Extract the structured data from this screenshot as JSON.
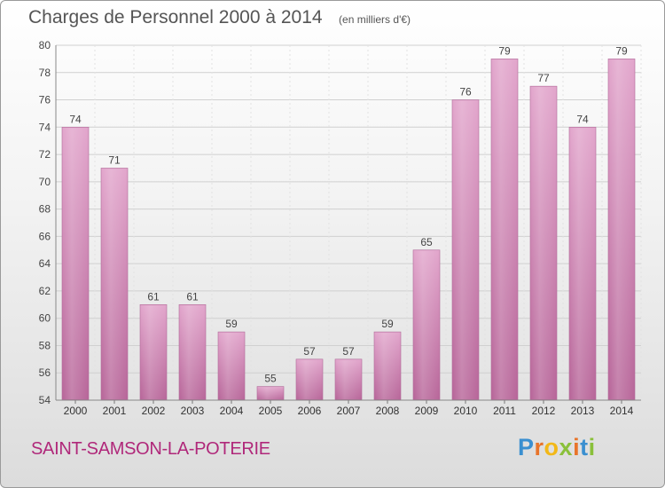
{
  "title": "Charges de Personnel 2000 à 2014",
  "subtitle": "(en milliers d'€)",
  "commune": "SAINT-SAMSON-LA-POTERIE",
  "logo": {
    "text": "Proxiti",
    "letters": [
      {
        "ch": "P",
        "color": "#3a8fd0"
      },
      {
        "ch": "r",
        "color": "#e8742a"
      },
      {
        "ch": "o",
        "color": "#f2b818"
      },
      {
        "ch": "x",
        "color": "#8ac03a"
      },
      {
        "ch": "i",
        "color": "#e8742a"
      },
      {
        "ch": "t",
        "color": "#3a8fd0"
      },
      {
        "ch": "i",
        "color": "#8ac03a"
      }
    ]
  },
  "chart_data": {
    "type": "bar",
    "title": "Charges de Personnel 2000 à 2014",
    "subtitle": "(en milliers d'€)",
    "categories": [
      "2000",
      "2001",
      "2002",
      "2003",
      "2004",
      "2005",
      "2006",
      "2007",
      "2008",
      "2009",
      "2010",
      "2011",
      "2012",
      "2013",
      "2014"
    ],
    "values": [
      74,
      71,
      61,
      61,
      59,
      55,
      57,
      57,
      59,
      65,
      76,
      79,
      77,
      74,
      79
    ],
    "ylim": [
      54,
      80
    ],
    "yticks": [
      54,
      56,
      58,
      60,
      62,
      64,
      66,
      68,
      70,
      72,
      74,
      76,
      78,
      80
    ],
    "grid": true,
    "bar_color": "#d890bc"
  }
}
